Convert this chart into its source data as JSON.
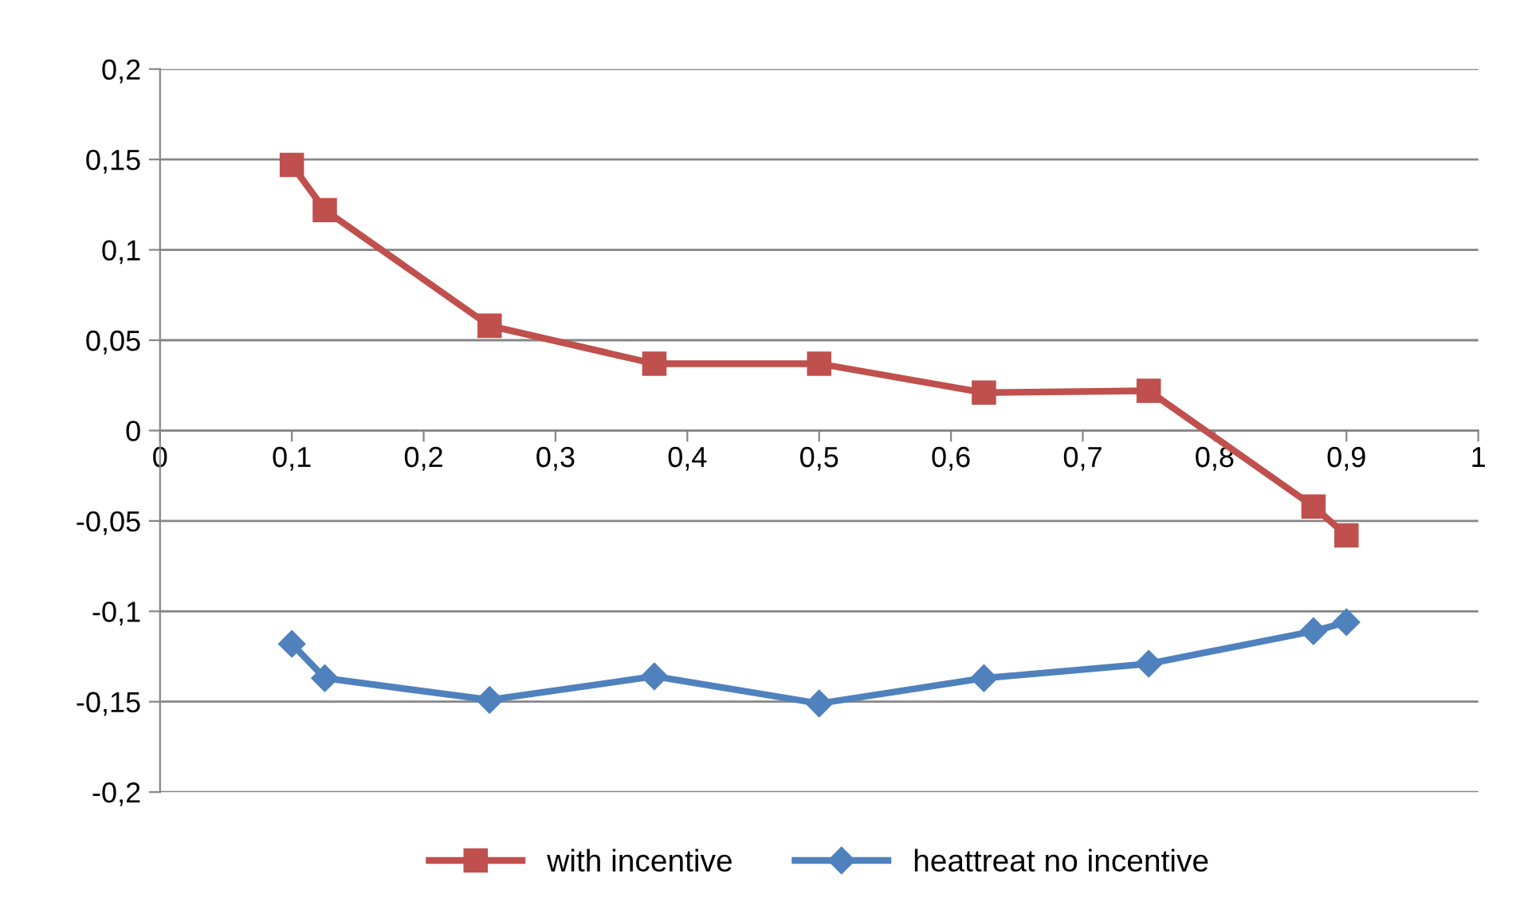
{
  "chart_data": {
    "type": "line",
    "xlim": [
      0,
      1
    ],
    "ylim": [
      -0.2,
      0.2
    ],
    "xticks": [
      0,
      {
        "value": 0.1,
        "label": "0,1"
      },
      {
        "value": 0.2,
        "label": "0,2"
      },
      {
        "value": 0.3,
        "label": "0,3"
      },
      {
        "value": 0.4,
        "label": "0,4"
      },
      {
        "value": 0.5,
        "label": "0,5"
      },
      {
        "value": 0.6,
        "label": "0,6"
      },
      {
        "value": 0.7,
        "label": "0,7"
      },
      {
        "value": 0.8,
        "label": "0,8"
      },
      {
        "value": 0.9,
        "label": "0,9"
      },
      1
    ],
    "yticks": [
      {
        "value": -0.2,
        "label": "-0,2"
      },
      {
        "value": -0.15,
        "label": "-0,15"
      },
      {
        "value": -0.1,
        "label": "-0,1"
      },
      {
        "value": -0.05,
        "label": "-0,05"
      },
      0,
      {
        "value": 0.05,
        "label": "0,05"
      },
      {
        "value": 0.1,
        "label": "0,1"
      },
      {
        "value": 0.15,
        "label": "0,15"
      },
      {
        "value": 0.2,
        "label": "0,2"
      }
    ],
    "grid": "y",
    "legend": "bottom",
    "line_style": "solid",
    "x": [
      0.1,
      0.125,
      0.25,
      0.375,
      0.5,
      0.625,
      0.75,
      0.875,
      0.9
    ],
    "series": [
      {
        "name": "with incentive",
        "color": "#c0504d",
        "marker": "square",
        "values": [
          0.147,
          0.122,
          0.058,
          0.037,
          0.037,
          0.021,
          0.022,
          -0.042,
          -0.058
        ]
      },
      {
        "name": "heattreat no incentive",
        "color": "#4f81bd",
        "marker": "diamond",
        "values": [
          -0.118,
          -0.137,
          -0.149,
          -0.136,
          -0.151,
          -0.137,
          -0.129,
          -0.111,
          -0.106
        ]
      }
    ]
  }
}
